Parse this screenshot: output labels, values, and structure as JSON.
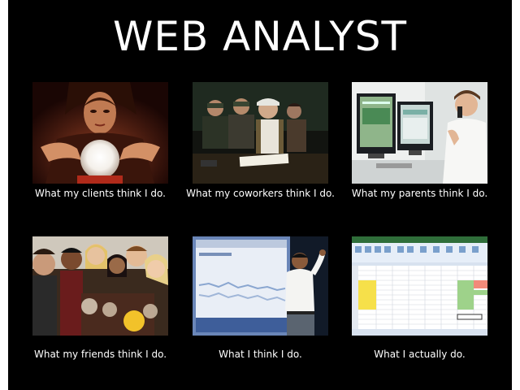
{
  "title": "WEB ANALYST",
  "panels": [
    {
      "caption": "What my clients think I do.",
      "image": "fortune-teller-crystal-ball"
    },
    {
      "caption": "What my coworkers think I do.",
      "image": "security-operations-room"
    },
    {
      "caption": "What my parents think I do.",
      "image": "man-at-dual-monitors-on-phone"
    },
    {
      "caption": "What my friends think I do.",
      "image": "partying-friends"
    },
    {
      "caption": "What I think I do.",
      "image": "presenter-on-stage-with-chart"
    },
    {
      "caption": "What I actually do.",
      "image": "excel-spreadsheet"
    }
  ],
  "colors": {
    "background": "#000000",
    "text": "#ffffff"
  }
}
